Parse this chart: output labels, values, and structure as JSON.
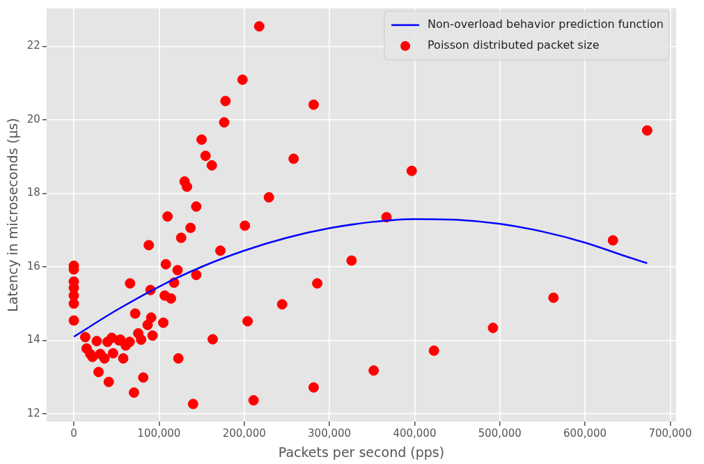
{
  "chart_data": {
    "type": "scatter",
    "xlabel": "Packets per second (pps)",
    "ylabel": "Latency in microseconds (μs)",
    "xlim": [
      -32000,
      707000
    ],
    "ylim": [
      11.79,
      23.03
    ],
    "xticks": [
      {
        "value": 0,
        "label": "0"
      },
      {
        "value": 100000,
        "label": "100,000"
      },
      {
        "value": 200000,
        "label": "200,000"
      },
      {
        "value": 300000,
        "label": "300,000"
      },
      {
        "value": 400000,
        "label": "400,000"
      },
      {
        "value": 500000,
        "label": "500,000"
      },
      {
        "value": 600000,
        "label": "600,000"
      },
      {
        "value": 700000,
        "label": "700,000"
      }
    ],
    "yticks": [
      12,
      14,
      16,
      18,
      20,
      22
    ],
    "grid": true,
    "legend": "top right",
    "marker": "circle",
    "series": [
      {
        "name": "Non-overload behavior prediction function",
        "type": "line",
        "color": "#0000ff",
        "marker": "none",
        "x": [
          0,
          50000,
          100000,
          150000,
          200000,
          250000,
          300000,
          350000,
          400000,
          450000,
          500000,
          550000,
          600000,
          650000,
          673000
        ],
        "values": [
          14.1,
          14.82,
          15.46,
          16.0,
          16.44,
          16.79,
          17.05,
          17.22,
          17.3,
          17.28,
          17.17,
          16.96,
          16.66,
          16.27,
          16.1
        ]
      },
      {
        "name": "Poisson distributed packet size",
        "color": "#ff0000",
        "x": [
          0,
          0,
          0,
          0,
          0,
          0,
          0,
          13400,
          15000,
          19300,
          21800,
          26900,
          29000,
          31000,
          36000,
          39500,
          41000,
          44500,
          46000,
          53000,
          54600,
          58000,
          61000,
          65500,
          66000,
          70600,
          72000,
          75600,
          79000,
          81500,
          86600,
          88000,
          90000,
          90800,
          92400,
          105000,
          106700,
          108000,
          110000,
          114000,
          117600,
          121800,
          122700,
          126000,
          130000,
          132800,
          137000,
          140000,
          143700,
          143700,
          150000,
          154600,
          162000,
          163000,
          172000,
          176500,
          178000,
          198000,
          200800,
          204000,
          211000,
          217600,
          229000,
          244500,
          258000,
          281500,
          281500,
          285700,
          326000,
          352000,
          367000,
          396600,
          422700,
          492000,
          563000,
          632800,
          673000
        ],
        "values": [
          16.03,
          15.93,
          15.6,
          15.43,
          15.22,
          15.0,
          14.54,
          14.09,
          13.78,
          13.63,
          13.55,
          13.98,
          13.14,
          13.63,
          13.51,
          13.96,
          12.87,
          14.07,
          13.65,
          14.0,
          14.02,
          13.51,
          13.86,
          13.96,
          15.55,
          12.58,
          14.73,
          14.19,
          14.02,
          12.99,
          14.42,
          16.59,
          15.37,
          14.62,
          14.13,
          14.48,
          15.22,
          16.07,
          17.37,
          15.14,
          15.57,
          15.91,
          13.51,
          16.79,
          18.32,
          18.18,
          17.06,
          12.27,
          17.64,
          15.78,
          19.46,
          19.02,
          18.76,
          14.03,
          16.44,
          19.93,
          20.51,
          21.09,
          17.12,
          14.52,
          12.37,
          22.54,
          17.89,
          14.98,
          18.94,
          20.41,
          12.72,
          15.55,
          16.17,
          13.18,
          17.35,
          18.61,
          13.72,
          14.34,
          15.16,
          16.72,
          19.71
        ]
      }
    ]
  }
}
